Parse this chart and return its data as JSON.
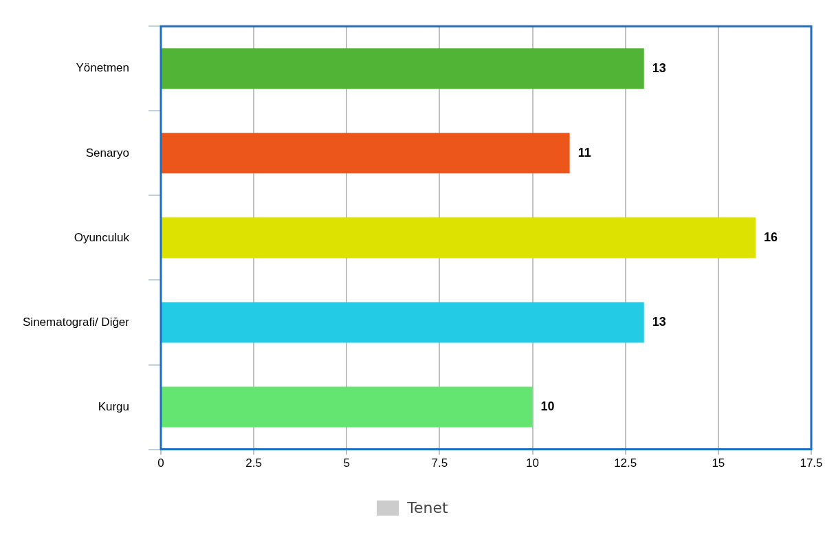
{
  "chart_data": {
    "type": "bar",
    "orientation": "horizontal",
    "categories": [
      "Yönetmen",
      "Senaryo",
      "Oyunculuk",
      "Sinematografi/ Diğer",
      "Kurgu"
    ],
    "series": [
      {
        "name": "Tenet",
        "color": "#cccccc",
        "colors": [
          "#52b436",
          "#ec561b",
          "#dde200",
          "#24cbe5",
          "#64e572"
        ],
        "values": [
          13,
          11,
          16,
          13,
          10
        ]
      }
    ],
    "xlim": [
      0,
      17.5
    ],
    "xticks": [
      0,
      2.5,
      5,
      7.5,
      10,
      12.5,
      15,
      17.5
    ],
    "grid": "x",
    "legend": "bottom",
    "data_labels": true
  }
}
